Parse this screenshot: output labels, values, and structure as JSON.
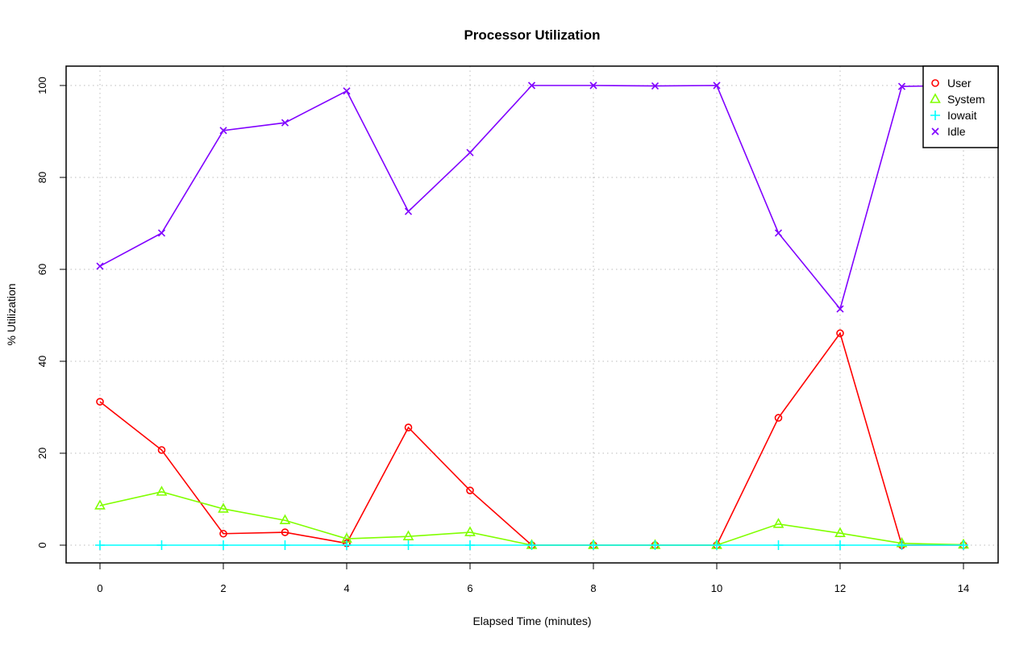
{
  "chart_data": {
    "type": "line",
    "title": "Processor Utilization",
    "xlabel": "Elapsed Time (minutes)",
    "ylabel": "% Utilization",
    "xlim": [
      0,
      14
    ],
    "ylim": [
      0,
      100
    ],
    "x_ticks": [
      0,
      2,
      4,
      6,
      8,
      10,
      12,
      14
    ],
    "y_ticks": [
      0,
      20,
      40,
      60,
      80,
      100
    ],
    "grid": true,
    "legend_position": "top-right",
    "x": [
      0,
      1,
      2,
      3,
      4,
      5,
      6,
      7,
      8,
      9,
      10,
      11,
      12,
      13,
      14
    ],
    "series": [
      {
        "name": "User",
        "color": "#ff0000",
        "marker": "circle",
        "values": [
          31.2,
          20.7,
          2.5,
          2.8,
          0.4,
          25.6,
          11.9,
          0,
          0,
          0,
          0,
          27.7,
          46.1,
          0,
          0
        ]
      },
      {
        "name": "System",
        "color": "#80ff00",
        "marker": "triangle",
        "values": [
          8.6,
          11.6,
          7.9,
          5.4,
          1.4,
          1.9,
          2.8,
          0,
          0,
          0,
          0,
          4.6,
          2.6,
          0.4,
          0.1
        ]
      },
      {
        "name": "Iowait",
        "color": "#00ffff",
        "marker": "plus",
        "values": [
          0,
          0,
          0,
          0,
          0,
          0,
          0,
          0,
          0,
          0,
          0,
          0,
          0,
          0,
          0
        ]
      },
      {
        "name": "Idle",
        "color": "#8000ff",
        "marker": "cross",
        "values": [
          60.7,
          67.9,
          90.2,
          91.9,
          98.8,
          72.6,
          85.4,
          100,
          100,
          99.9,
          100,
          67.9,
          51.4,
          99.8,
          100
        ]
      }
    ]
  }
}
